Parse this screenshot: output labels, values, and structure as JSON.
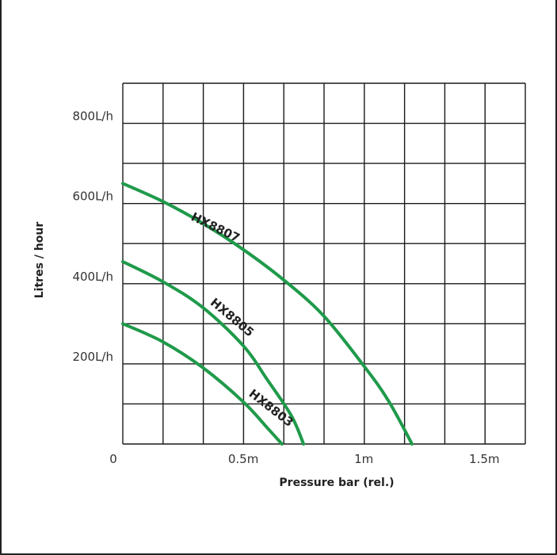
{
  "chart_data": {
    "type": "line",
    "title": "",
    "xlabel": "Pressure bar (rel.)",
    "ylabel": "Litres / hour",
    "xlim": [
      0,
      1.67
    ],
    "ylim": [
      0,
      900
    ],
    "x_ticks": [
      {
        "value": 0,
        "label": "0"
      },
      {
        "value": 0.5,
        "label": "0.5m"
      },
      {
        "value": 1.0,
        "label": "1m"
      },
      {
        "value": 1.5,
        "label": "1.5m"
      }
    ],
    "y_ticks": [
      {
        "value": 200,
        "label": "200L/h"
      },
      {
        "value": 400,
        "label": "400L/h"
      },
      {
        "value": 600,
        "label": "600L/h"
      },
      {
        "value": 800,
        "label": "800L/h"
      }
    ],
    "grid": true,
    "colors": {
      "curve": "#1f9a4a",
      "grid": "#1a1a1a"
    },
    "series": [
      {
        "name": "HX8807",
        "points": [
          [
            0,
            650
          ],
          [
            0.166,
            605
          ],
          [
            0.333,
            550
          ],
          [
            0.5,
            485
          ],
          [
            0.666,
            410
          ],
          [
            0.833,
            320
          ],
          [
            1.0,
            195
          ],
          [
            1.1,
            110
          ],
          [
            1.2,
            0
          ]
        ],
        "label_pos": [
          0.28,
          560
        ],
        "label_angle": 26
      },
      {
        "name": "HX8805",
        "points": [
          [
            0,
            455
          ],
          [
            0.166,
            405
          ],
          [
            0.333,
            340
          ],
          [
            0.5,
            245
          ],
          [
            0.6,
            160
          ],
          [
            0.7,
            70
          ],
          [
            0.75,
            0
          ]
        ],
        "label_pos": [
          0.36,
          350
        ],
        "label_angle": 40
      },
      {
        "name": "HX8803",
        "points": [
          [
            0,
            300
          ],
          [
            0.166,
            255
          ],
          [
            0.333,
            190
          ],
          [
            0.5,
            105
          ],
          [
            0.6,
            40
          ],
          [
            0.66,
            0
          ]
        ],
        "label_pos": [
          0.52,
          122
        ],
        "label_angle": 38
      }
    ]
  }
}
